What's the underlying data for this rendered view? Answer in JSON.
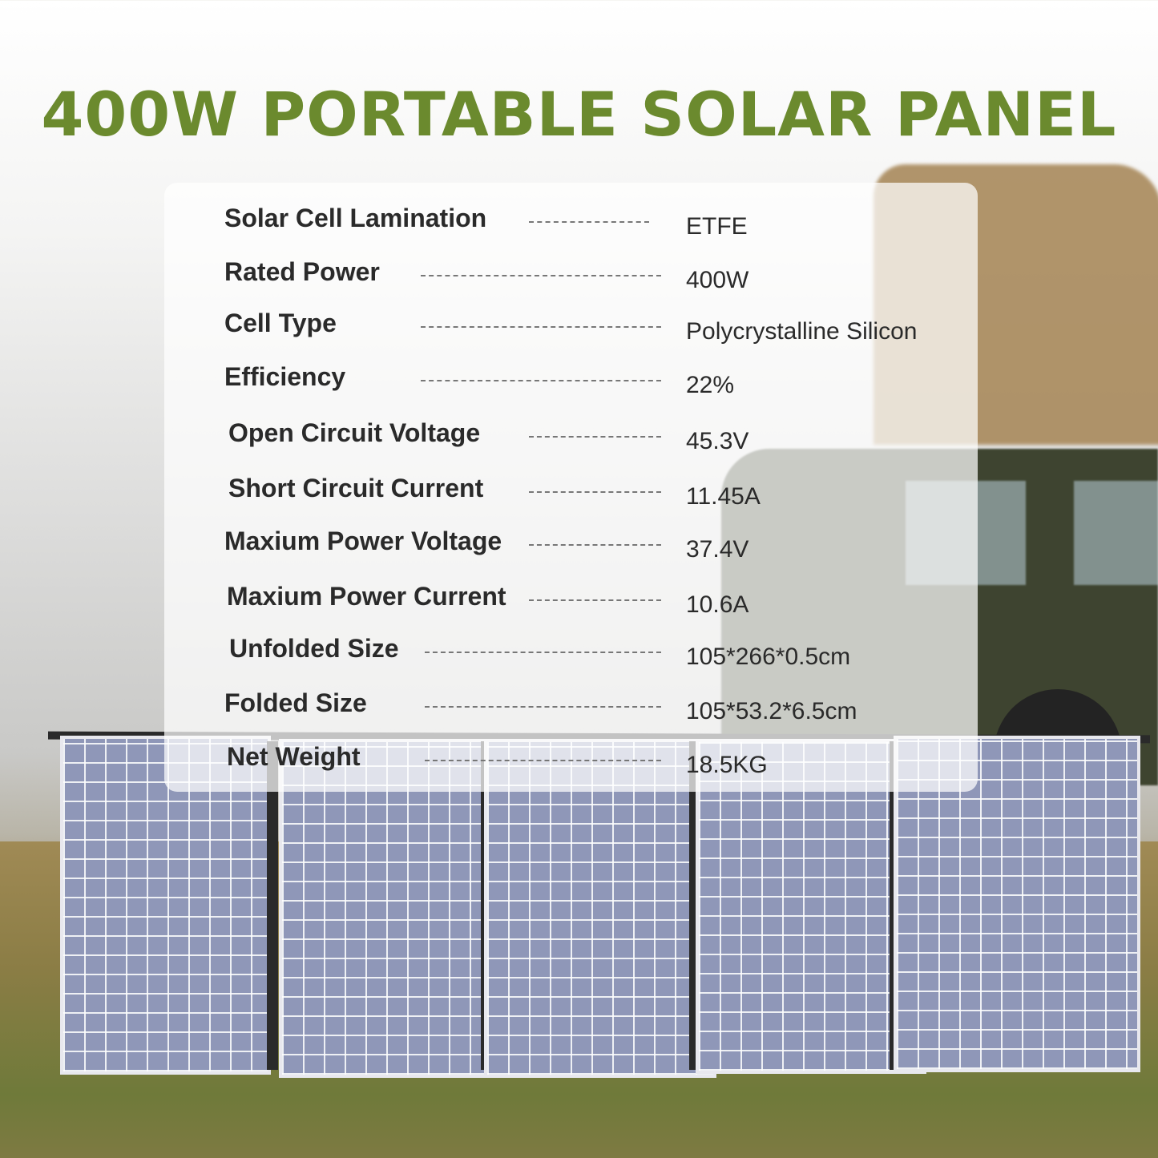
{
  "title": "400W PORTABLE SOLAR PANEL",
  "title_color": "#6b8a2e",
  "specs": [
    {
      "label": "Solar Cell Lamination",
      "value": "ETFE"
    },
    {
      "label": "Rated Power",
      "value": "400W"
    },
    {
      "label": "Cell Type",
      "value": "Polycrystalline Silicon"
    },
    {
      "label": "Efficiency",
      "value": "22%"
    },
    {
      "label": "Open Circuit Voltage",
      "value": "45.3V"
    },
    {
      "label": "Short Circuit Current",
      "value": "11.45A"
    },
    {
      "label": "Maxium Power Voltage",
      "value": "37.4V"
    },
    {
      "label": "Maxium Power Current",
      "value": "10.6A"
    },
    {
      "label": "Unfolded Size",
      "value": "105*266*0.5cm"
    },
    {
      "label": "Folded Size",
      "value": "105*53.2*6.5cm"
    },
    {
      "label": "Net Weight",
      "value": "18.5KG"
    }
  ]
}
